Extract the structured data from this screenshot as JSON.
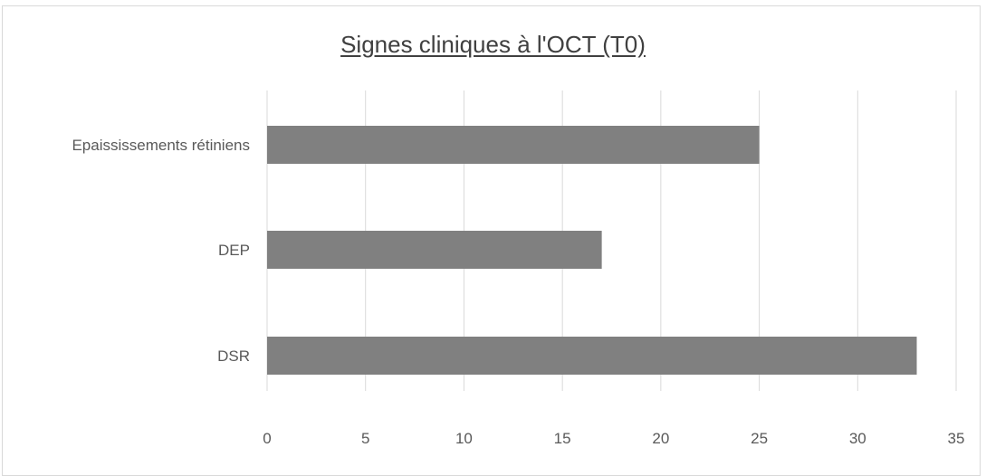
{
  "chart_data": {
    "type": "bar",
    "orientation": "horizontal",
    "title": "Signes cliniques à l'OCT (T0)",
    "xlabel": "",
    "ylabel": "",
    "categories": [
      "Epaississements rétiniens",
      "DEP",
      "DSR"
    ],
    "values": [
      25,
      17,
      33
    ],
    "xlim": [
      0,
      35
    ],
    "xticks": [
      0,
      5,
      10,
      15,
      20,
      25,
      30,
      35
    ],
    "grid": true,
    "legend": "none",
    "bar_color": "#808080",
    "grid_color": "#d9d9d9"
  }
}
